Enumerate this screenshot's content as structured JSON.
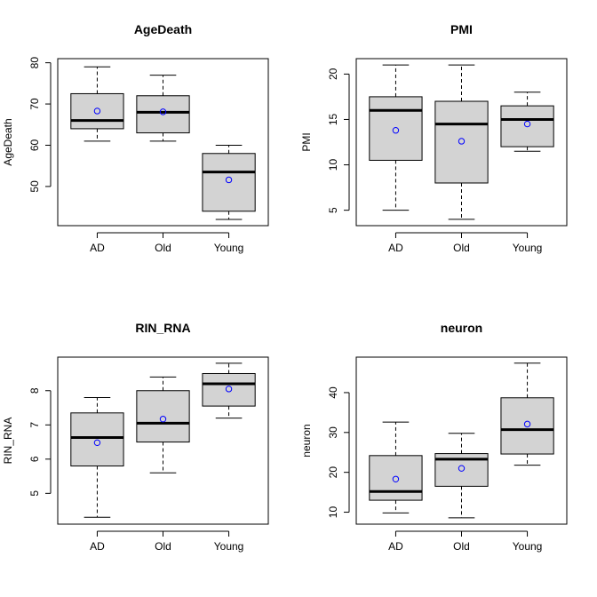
{
  "chart_data": [
    {
      "type": "boxplot",
      "title": "AgeDeath",
      "ylabel": "AgeDeath",
      "xlabel": "",
      "ylim": [
        40.5,
        81
      ],
      "yticks": [
        50,
        60,
        70,
        80
      ],
      "categories": [
        "AD",
        "Old",
        "Young"
      ],
      "boxes": [
        {
          "category": "AD",
          "whisker_low": 61,
          "q1": 64,
          "median": 66,
          "q3": 72.5,
          "whisker_high": 79,
          "mean": 68.3
        },
        {
          "category": "Old",
          "whisker_low": 61,
          "q1": 63,
          "median": 68,
          "q3": 72,
          "whisker_high": 77,
          "mean": 68.1
        },
        {
          "category": "Young",
          "whisker_low": 42,
          "q1": 44,
          "median": 53.5,
          "q3": 58,
          "whisker_high": 60,
          "mean": 51.6
        }
      ]
    },
    {
      "type": "boxplot",
      "title": "PMI",
      "ylabel": "PMI",
      "xlabel": "",
      "ylim": [
        3.3,
        21.7
      ],
      "yticks": [
        5,
        10,
        15,
        20
      ],
      "categories": [
        "AD",
        "Old",
        "Young"
      ],
      "boxes": [
        {
          "category": "AD",
          "whisker_low": 5,
          "q1": 10.5,
          "median": 16,
          "q3": 17.5,
          "whisker_high": 21,
          "mean": 13.8
        },
        {
          "category": "Old",
          "whisker_low": 4,
          "q1": 8,
          "median": 14.5,
          "q3": 17,
          "whisker_high": 21,
          "mean": 12.6
        },
        {
          "category": "Young",
          "whisker_low": 11.5,
          "q1": 12,
          "median": 15,
          "q3": 16.5,
          "whisker_high": 18,
          "mean": 14.5
        }
      ]
    },
    {
      "type": "boxplot",
      "title": "RIN_RNA",
      "ylabel": "RIN_RNA",
      "xlabel": "",
      "ylim": [
        4.1,
        8.98
      ],
      "yticks": [
        5,
        6,
        7,
        8
      ],
      "categories": [
        "AD",
        "Old",
        "Young"
      ],
      "boxes": [
        {
          "category": "AD",
          "whisker_low": 4.3,
          "q1": 5.8,
          "median": 6.63,
          "q3": 7.35,
          "whisker_high": 7.8,
          "mean": 6.48
        },
        {
          "category": "Old",
          "whisker_low": 5.6,
          "q1": 6.5,
          "median": 7.05,
          "q3": 8.0,
          "whisker_high": 8.4,
          "mean": 7.17
        },
        {
          "category": "Young",
          "whisker_low": 7.2,
          "q1": 7.55,
          "median": 8.2,
          "q3": 8.5,
          "whisker_high": 8.8,
          "mean": 8.05
        }
      ]
    },
    {
      "type": "boxplot",
      "title": "neuron",
      "ylabel": "neuron",
      "xlabel": "",
      "ylim": [
        7.0,
        48.9
      ],
      "yticks": [
        10,
        20,
        30,
        40
      ],
      "categories": [
        "AD",
        "Old",
        "Young"
      ],
      "boxes": [
        {
          "category": "AD",
          "whisker_low": 9.8,
          "q1": 13,
          "median": 15.2,
          "q3": 24.2,
          "whisker_high": 32.6,
          "mean": 18.3
        },
        {
          "category": "Old",
          "whisker_low": 8.6,
          "q1": 16.5,
          "median": 23.3,
          "q3": 24.7,
          "whisker_high": 29.8,
          "mean": 21.0
        },
        {
          "category": "Young",
          "whisker_low": 21.8,
          "q1": 24.6,
          "median": 30.7,
          "q3": 38.7,
          "whisker_high": 47.4,
          "mean": 32.1
        }
      ]
    }
  ],
  "colors": {
    "box_fill": "#d3d3d3",
    "mean_marker": "#0000ff",
    "line": "#000000"
  }
}
